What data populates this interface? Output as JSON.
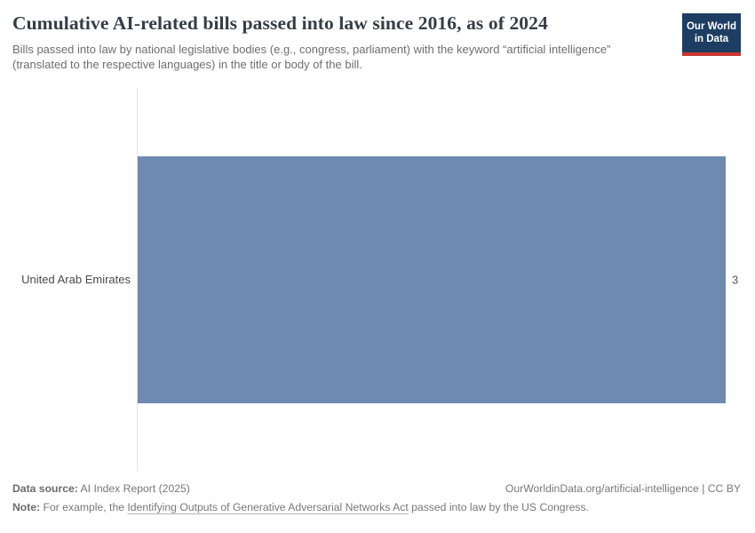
{
  "chart_data": {
    "type": "bar",
    "orientation": "horizontal",
    "title": "Cumulative AI-related bills passed into law since 2016, as of 2024",
    "subtitle": "Bills passed into law by national legislative bodies (e.g., congress, parliament) with the keyword “artificial intelligence” (translated to the respective languages) in the title or body of the bill.",
    "categories": [
      "United Arab Emirates"
    ],
    "values": [
      3
    ],
    "value_labels": [
      "3"
    ],
    "xlabel": "",
    "ylabel": "",
    "xlim": [
      0,
      3
    ],
    "grid": false,
    "legend": "none",
    "bar_color": "#6f8ab0",
    "axis_line_color": "#e2e2e2"
  },
  "branding": {
    "logo_line1": "Our World",
    "logo_line2": "in Data",
    "logo_bg_color": "#1d3d63",
    "logo_accent_color": "#cb3731"
  },
  "footer": {
    "data_source_label": "Data source:",
    "data_source_value": "AI Index Report (2025)",
    "attribution": "OurWorldinData.org/artificial-intelligence | CC BY",
    "note_label": "Note:",
    "note_prefix": "For example, the",
    "note_link": "Identifying Outputs of Generative Adversarial Networks Act",
    "note_suffix": "passed into law by the US Congress."
  }
}
